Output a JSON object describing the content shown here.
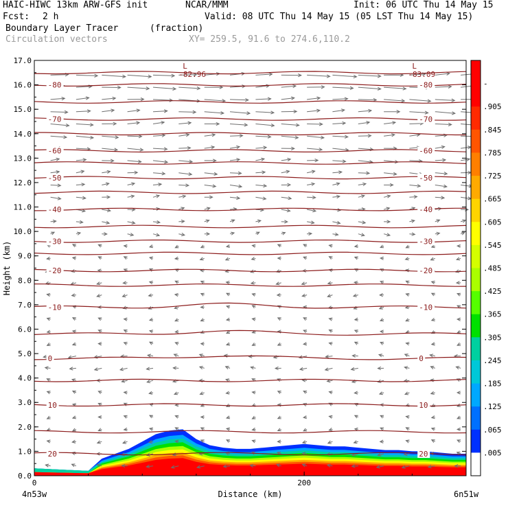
{
  "header": {
    "model": "HAIC-HIWC 13km ARW-GFS init",
    "org": "NCAR/MMM",
    "init": "Init: 06 UTC Thu 14 May 15",
    "fcst_label": "Fcst:",
    "fcst_value": "2 h",
    "valid": "Valid: 08 UTC Thu 14 May 15 (05 LST Thu 14 May 15)",
    "field1": "Boundary Layer Tracer",
    "field1_units": "(fraction)",
    "field2": "Circulation vectors",
    "xy": "XY= 259.5, 91.6 to 274.6,110.2"
  },
  "chart_data": {
    "type": "heatmap",
    "ylabel": "Height (km)",
    "xlabel": "Distance (km)",
    "y_ticks": [
      "0.0",
      "1.0",
      "2.0",
      "3.0",
      "4.0",
      "5.0",
      "6.0",
      "7.0",
      "8.0",
      "9.0",
      "10.0",
      "11.0",
      "12.0",
      "13.0",
      "14.0",
      "15.0",
      "16.0",
      "17.0"
    ],
    "x_ticks": [
      "0",
      "200"
    ],
    "x_tick_values": [
      0,
      200
    ],
    "xlim": [
      0,
      320
    ],
    "ylim": [
      0,
      17
    ],
    "left_label": "4n53w",
    "right_label": "6n51w",
    "colorbar": {
      "labels": [
        "-",
        ".905",
        ".845",
        ".785",
        ".725",
        ".665",
        ".605",
        ".545",
        ".485",
        ".425",
        ".365",
        ".305",
        ".245",
        ".185",
        ".125",
        ".065",
        ".005"
      ],
      "colors": [
        "#ff0000",
        "#ff0000",
        "#ff2a00",
        "#ff5500",
        "#ff7f00",
        "#ffaa00",
        "#ffd400",
        "#ffff00",
        "#d4ff00",
        "#aaff00",
        "#55ff00",
        "#00e000",
        "#00d0a0",
        "#00c8d8",
        "#00a8ff",
        "#0070ff",
        "#0030ff",
        "#ffffff"
      ]
    },
    "isotherms": [
      {
        "label": "-80",
        "height": 16.0
      },
      {
        "label": "-70",
        "height": 14.6
      },
      {
        "label": "-60",
        "height": 13.3
      },
      {
        "label": "-50",
        "height": 12.2
      },
      {
        "label": "-40",
        "height": 10.9
      },
      {
        "label": "-30",
        "height": 9.6
      },
      {
        "label": "-20",
        "height": 8.4
      },
      {
        "label": "-10",
        "height": 6.9
      },
      {
        "label": "0",
        "height": 4.8
      },
      {
        "label": "10",
        "height": 2.9
      },
      {
        "label": "20",
        "height": 0.9
      }
    ],
    "extra_isotherm_heights": [
      16.5,
      15.3,
      14.0,
      12.8,
      11.6,
      10.2,
      9.1,
      7.8,
      5.8,
      3.9,
      1.8
    ],
    "tropopause_lows": [
      {
        "label": "L",
        "value": "-82.96",
        "x": 110,
        "y": 16.6
      },
      {
        "label": "L",
        "value": "-83.09",
        "x": 280,
        "y": 16.6
      }
    ],
    "tracer_profile": {
      "x": [
        0,
        20,
        40,
        50,
        60,
        70,
        80,
        90,
        100,
        110,
        120,
        130,
        140,
        150,
        160,
        170,
        180,
        190,
        200,
        210,
        220,
        230,
        240,
        250,
        260,
        270,
        280,
        290,
        300,
        310,
        320
      ],
      "top_km": [
        0.3,
        0.25,
        0.2,
        0.7,
        0.9,
        1.1,
        1.4,
        1.7,
        1.85,
        1.9,
        1.5,
        1.25,
        1.15,
        1.1,
        1.1,
        1.15,
        1.2,
        1.25,
        1.3,
        1.25,
        1.2,
        1.2,
        1.15,
        1.1,
        1.05,
        1.05,
        1.0,
        1.0,
        0.95,
        0.9,
        0.9
      ]
    }
  }
}
